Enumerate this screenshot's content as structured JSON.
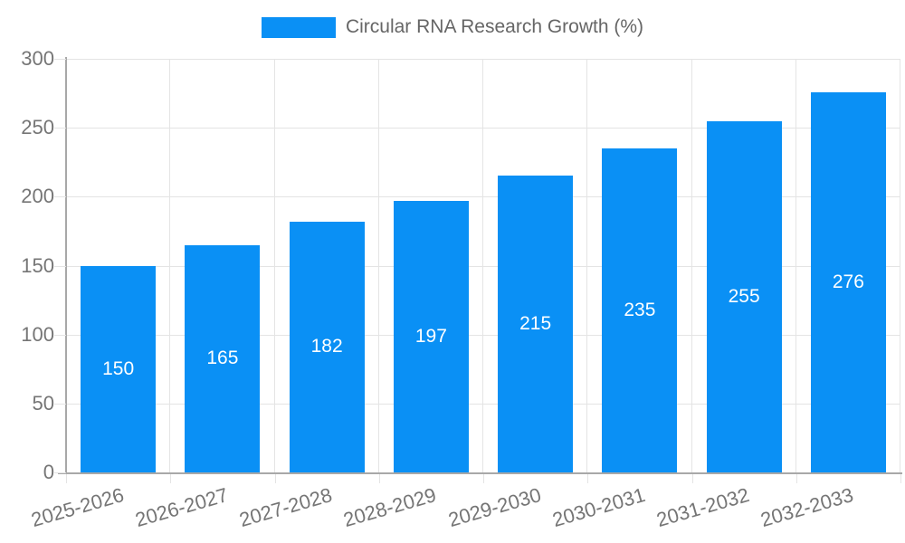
{
  "chart": {
    "legend_label": "Circular RNA Research Growth (%)"
  },
  "chart_data": {
    "type": "bar",
    "title": "Circular RNA Research Growth (%)",
    "categories": [
      "2025-2026",
      "2026-2027",
      "2027-2028",
      "2028-2029",
      "2029-2030",
      "2030-2031",
      "2031-2032",
      "2032-2033"
    ],
    "values": [
      150,
      165,
      182,
      197,
      215,
      235,
      255,
      276
    ],
    "xlabel": "",
    "ylabel": "",
    "ylim": [
      0,
      300
    ],
    "yticks": [
      0,
      50,
      100,
      150,
      200,
      250,
      300
    ],
    "grid": true,
    "legend_position": "top-center",
    "value_labels": "centered-inside-bars",
    "colors": {
      "bar": "#0a90f5",
      "grid": "#e4e4e4",
      "axis": "#a8a8a8",
      "tick_label_text": "#757575",
      "legend_text": "#666666",
      "value_label_text": "#ffffff",
      "background": "#ffffff"
    }
  }
}
